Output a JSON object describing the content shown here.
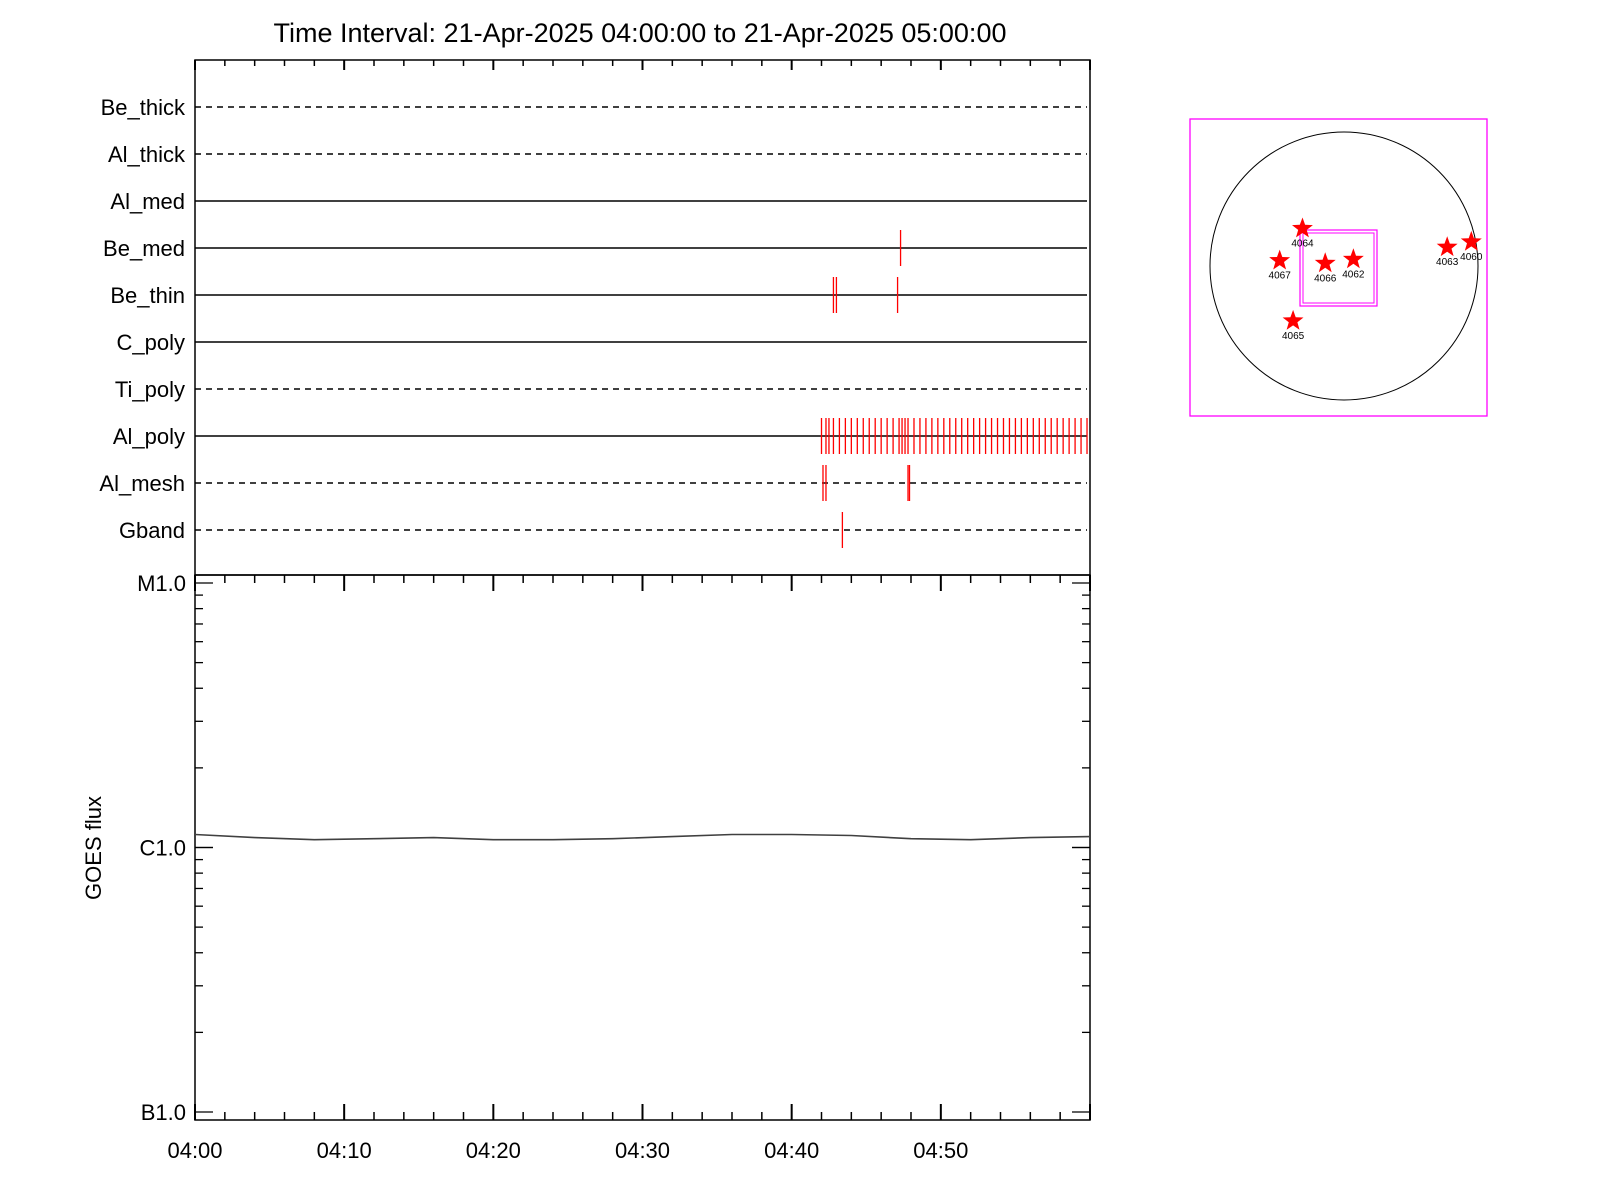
{
  "title": "Time Interval: 21-Apr-2025 04:00:00 to 21-Apr-2025 05:00:00",
  "colors": {
    "event": "#ff0000",
    "box": "#ff00ff",
    "axis": "#000000",
    "curve": "#404040",
    "star": "#ff0000"
  },
  "chart_data": [
    {
      "type": "timeline",
      "x": {
        "range_minutes": [
          0,
          60
        ],
        "tick_labels": [
          "04:00",
          "04:10",
          "04:20",
          "04:30",
          "04:40",
          "04:50"
        ],
        "tick_minutes": [
          0,
          10,
          20,
          30,
          40,
          50
        ]
      },
      "channels": [
        {
          "name": "Be_thick",
          "style": "dashed",
          "events": []
        },
        {
          "name": "Al_thick",
          "style": "dashed",
          "events": []
        },
        {
          "name": "Al_med",
          "style": "solid",
          "events": []
        },
        {
          "name": "Be_med",
          "style": "solid",
          "events": [
            47.3
          ]
        },
        {
          "name": "Be_thin",
          "style": "solid",
          "events": [
            42.8,
            43.0,
            47.1
          ]
        },
        {
          "name": "C_poly",
          "style": "solid",
          "events": []
        },
        {
          "name": "Ti_poly",
          "style": "dashed",
          "events": []
        },
        {
          "name": "Al_poly",
          "style": "solid",
          "events": [
            42.0,
            42.3,
            42.5,
            42.8,
            43.2,
            43.6,
            44.0,
            44.4,
            44.8,
            45.2,
            45.6,
            46.0,
            46.4,
            46.8,
            47.2,
            47.4,
            47.6,
            47.8,
            48.2,
            48.6,
            49.0,
            49.4,
            49.8,
            50.2,
            50.6,
            51.0,
            51.4,
            51.8,
            52.2,
            52.6,
            53.0,
            53.4,
            53.8,
            54.2,
            54.6,
            55.0,
            55.4,
            55.8,
            56.2,
            56.6,
            57.0,
            57.4,
            57.8,
            58.2,
            58.6,
            59.0,
            59.4,
            59.8
          ]
        },
        {
          "name": "Al_mesh",
          "style": "dashed",
          "events": [
            42.1,
            42.3,
            47.8,
            47.9
          ]
        },
        {
          "name": "Gband",
          "style": "dashed",
          "events": [
            43.4
          ]
        }
      ]
    },
    {
      "type": "line",
      "ylabel": "GOES flux",
      "yscale": "log",
      "ylim": [
        1e-07,
        1e-05
      ],
      "y_tick_labels": [
        "B1.0",
        "C1.0",
        "M1.0"
      ],
      "x_tick_labels": [
        "04:00",
        "04:10",
        "04:20",
        "04:30",
        "04:40",
        "04:50"
      ],
      "series": [
        {
          "x": [
            0,
            4,
            8,
            12,
            16,
            20,
            24,
            28,
            32,
            36,
            40,
            44,
            48,
            52,
            56,
            60
          ],
          "y": [
            1.12e-06,
            1.09e-06,
            1.07e-06,
            1.08e-06,
            1.09e-06,
            1.07e-06,
            1.07e-06,
            1.08e-06,
            1.1e-06,
            1.12e-06,
            1.12e-06,
            1.11e-06,
            1.08e-06,
            1.07e-06,
            1.09e-06,
            1.1e-06
          ]
        }
      ]
    },
    {
      "type": "scatter",
      "description_of_axes": "solar disk map with active regions",
      "points": [
        {
          "label": "4064",
          "x": -0.31,
          "y": 0.28
        },
        {
          "label": "4067",
          "x": -0.48,
          "y": 0.04
        },
        {
          "label": "4066",
          "x": -0.14,
          "y": 0.02
        },
        {
          "label": "4062",
          "x": 0.07,
          "y": 0.05
        },
        {
          "label": "4063",
          "x": 0.77,
          "y": 0.14
        },
        {
          "label": "4060",
          "x": 0.95,
          "y": 0.18
        },
        {
          "label": "4065",
          "x": -0.38,
          "y": -0.41
        }
      ]
    }
  ]
}
